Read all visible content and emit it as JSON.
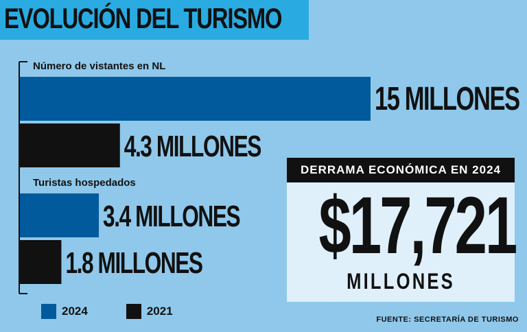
{
  "title": "EVOLUCIÓN DEL TURISMO",
  "chart_data": {
    "type": "bar",
    "orientation": "horizontal",
    "groups": [
      {
        "label": "Número de vistantes en NL",
        "bars": [
          {
            "series": "2024",
            "value": 15,
            "label": "15 MILLONES"
          },
          {
            "series": "2021",
            "value": 4.3,
            "label": "4.3 MILLONES"
          }
        ]
      },
      {
        "label": "Turistas hospedados",
        "bars": [
          {
            "series": "2024",
            "value": 3.4,
            "label": "3.4 MILLONES"
          },
          {
            "series": "2021",
            "value": 1.8,
            "label": "1.8 MILLONES"
          }
        ]
      }
    ],
    "series": [
      {
        "name": "2024",
        "color": "#005a9c"
      },
      {
        "name": "2021",
        "color": "#111111"
      }
    ],
    "xlim": [
      0,
      15
    ],
    "grid": false,
    "legend_position": "bottom-left"
  },
  "derrama": {
    "header": "DERRAMA ECONÓMICA EN 2024",
    "value": "$17,721",
    "unit": "MILLONES"
  },
  "legend": {
    "items": [
      {
        "label": "2024",
        "color": "#005a9c"
      },
      {
        "label": "2021",
        "color": "#111111"
      }
    ]
  },
  "source": "FUENTE: SECRETARÍA DE TURISMO"
}
